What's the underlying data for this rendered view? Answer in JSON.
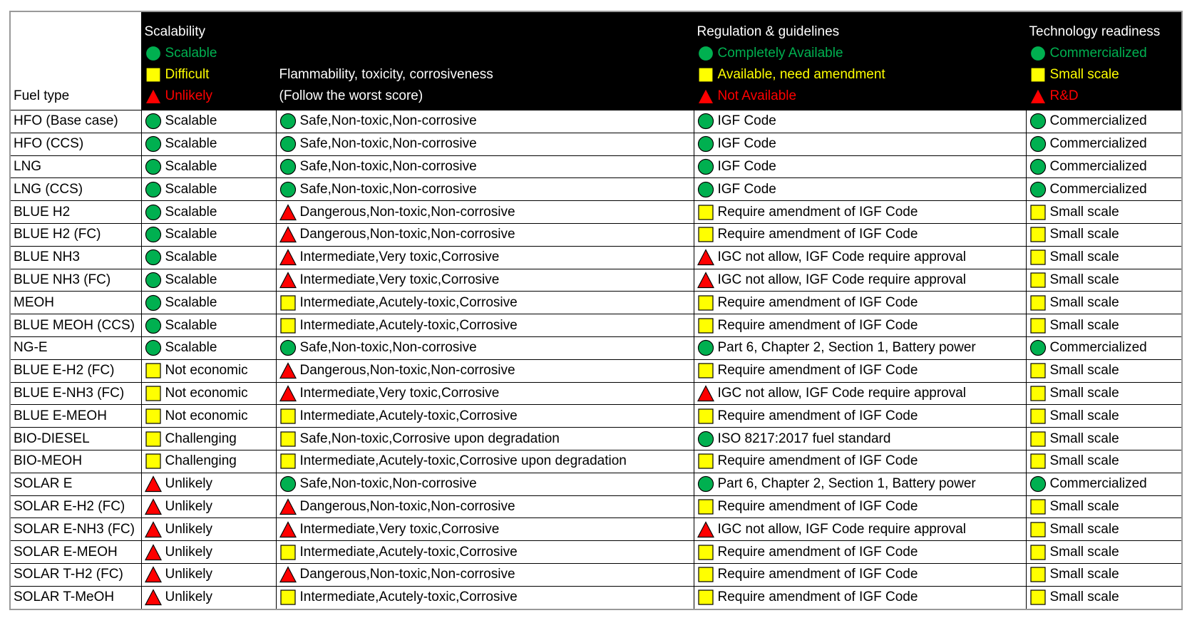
{
  "icon_colors": {
    "circle": "#00b050",
    "square": "#ffff00",
    "triangle": "#ff0000"
  },
  "header": {
    "fuel_type": "Fuel type",
    "columns": [
      {
        "title": "Scalability",
        "legend": [
          {
            "icon": "circle",
            "label": "Scalable"
          },
          {
            "icon": "square",
            "label": "Difficult"
          },
          {
            "icon": "triangle",
            "label": "Unlikely"
          }
        ]
      },
      {
        "title": "Flammability, toxicity, corrosiveness",
        "subtitle": "(Follow the worst score)"
      },
      {
        "title": "Regulation & guidelines",
        "legend": [
          {
            "icon": "circle",
            "label": "Completely Available"
          },
          {
            "icon": "square",
            "label": "Available, need amendment"
          },
          {
            "icon": "triangle",
            "label": "Not Available"
          }
        ]
      },
      {
        "title": "Technology readiness",
        "legend": [
          {
            "icon": "circle",
            "label": "Commercialized"
          },
          {
            "icon": "square",
            "label": "Small scale"
          },
          {
            "icon": "triangle",
            "label": "R&D"
          }
        ]
      }
    ]
  },
  "rows": [
    {
      "fuel": "HFO (Base case)",
      "cells": [
        {
          "icon": "circle",
          "text": "Scalable"
        },
        {
          "icon": "circle",
          "text": "Safe,Non-toxic,Non-corrosive"
        },
        {
          "icon": "circle",
          "text": "IGF Code"
        },
        {
          "icon": "circle",
          "text": "Commercialized"
        }
      ]
    },
    {
      "fuel": "HFO (CCS)",
      "cells": [
        {
          "icon": "circle",
          "text": "Scalable"
        },
        {
          "icon": "circle",
          "text": "Safe,Non-toxic,Non-corrosive"
        },
        {
          "icon": "circle",
          "text": "IGF Code"
        },
        {
          "icon": "circle",
          "text": "Commercialized"
        }
      ]
    },
    {
      "fuel": "LNG",
      "cells": [
        {
          "icon": "circle",
          "text": "Scalable"
        },
        {
          "icon": "circle",
          "text": "Safe,Non-toxic,Non-corrosive"
        },
        {
          "icon": "circle",
          "text": "IGF Code"
        },
        {
          "icon": "circle",
          "text": "Commercialized"
        }
      ]
    },
    {
      "fuel": "LNG (CCS)",
      "cells": [
        {
          "icon": "circle",
          "text": "Scalable"
        },
        {
          "icon": "circle",
          "text": "Safe,Non-toxic,Non-corrosive"
        },
        {
          "icon": "circle",
          "text": "IGF Code"
        },
        {
          "icon": "circle",
          "text": "Commercialized"
        }
      ]
    },
    {
      "fuel": "BLUE H2",
      "cells": [
        {
          "icon": "circle",
          "text": "Scalable"
        },
        {
          "icon": "triangle",
          "text": "Dangerous,Non-toxic,Non-corrosive"
        },
        {
          "icon": "square",
          "text": "Require amendment of IGF Code"
        },
        {
          "icon": "square",
          "text": "Small scale"
        }
      ]
    },
    {
      "fuel": "BLUE H2 (FC)",
      "cells": [
        {
          "icon": "circle",
          "text": "Scalable"
        },
        {
          "icon": "triangle",
          "text": "Dangerous,Non-toxic,Non-corrosive"
        },
        {
          "icon": "square",
          "text": "Require amendment of IGF Code"
        },
        {
          "icon": "square",
          "text": "Small scale"
        }
      ]
    },
    {
      "fuel": "BLUE NH3",
      "cells": [
        {
          "icon": "circle",
          "text": "Scalable"
        },
        {
          "icon": "triangle",
          "text": "Intermediate,Very toxic,Corrosive"
        },
        {
          "icon": "triangle",
          "text": "IGC not allow, IGF Code require approval"
        },
        {
          "icon": "square",
          "text": "Small scale"
        }
      ]
    },
    {
      "fuel": "BLUE NH3 (FC)",
      "cells": [
        {
          "icon": "circle",
          "text": "Scalable"
        },
        {
          "icon": "triangle",
          "text": "Intermediate,Very toxic,Corrosive"
        },
        {
          "icon": "triangle",
          "text": "IGC not allow, IGF Code require approval"
        },
        {
          "icon": "square",
          "text": "Small scale"
        }
      ]
    },
    {
      "fuel": "MEOH",
      "cells": [
        {
          "icon": "circle",
          "text": "Scalable"
        },
        {
          "icon": "square",
          "text": "Intermediate,Acutely-toxic,Corrosive"
        },
        {
          "icon": "square",
          "text": "Require amendment of IGF Code"
        },
        {
          "icon": "square",
          "text": "Small scale"
        }
      ]
    },
    {
      "fuel": "BLUE MEOH (CCS)",
      "cells": [
        {
          "icon": "circle",
          "text": "Scalable"
        },
        {
          "icon": "square",
          "text": "Intermediate,Acutely-toxic,Corrosive"
        },
        {
          "icon": "square",
          "text": "Require amendment of IGF Code"
        },
        {
          "icon": "square",
          "text": "Small scale"
        }
      ]
    },
    {
      "fuel": "NG-E",
      "cells": [
        {
          "icon": "circle",
          "text": "Scalable"
        },
        {
          "icon": "circle",
          "text": "Safe,Non-toxic,Non-corrosive"
        },
        {
          "icon": "circle",
          "text": "Part 6, Chapter 2, Section 1, Battery power"
        },
        {
          "icon": "circle",
          "text": "Commercialized"
        }
      ]
    },
    {
      "fuel": "BLUE E-H2 (FC)",
      "cells": [
        {
          "icon": "square",
          "text": "Not economic"
        },
        {
          "icon": "triangle",
          "text": "Dangerous,Non-toxic,Non-corrosive"
        },
        {
          "icon": "square",
          "text": "Require amendment of IGF Code"
        },
        {
          "icon": "square",
          "text": "Small scale"
        }
      ]
    },
    {
      "fuel": "BLUE E-NH3 (FC)",
      "cells": [
        {
          "icon": "square",
          "text": "Not economic"
        },
        {
          "icon": "triangle",
          "text": "Intermediate,Very toxic,Corrosive"
        },
        {
          "icon": "triangle",
          "text": "IGC not allow, IGF Code require approval"
        },
        {
          "icon": "square",
          "text": "Small scale"
        }
      ]
    },
    {
      "fuel": "BLUE E-MEOH",
      "cells": [
        {
          "icon": "square",
          "text": "Not economic"
        },
        {
          "icon": "square",
          "text": "Intermediate,Acutely-toxic,Corrosive"
        },
        {
          "icon": "square",
          "text": "Require amendment of IGF Code"
        },
        {
          "icon": "square",
          "text": "Small scale"
        }
      ]
    },
    {
      "fuel": "BIO-DIESEL",
      "cells": [
        {
          "icon": "square",
          "text": "Challenging"
        },
        {
          "icon": "square",
          "text": "Safe,Non-toxic,Corrosive upon degradation"
        },
        {
          "icon": "circle",
          "text": "ISO 8217:2017 fuel standard"
        },
        {
          "icon": "square",
          "text": "Small scale"
        }
      ]
    },
    {
      "fuel": "BIO-MEOH",
      "cells": [
        {
          "icon": "square",
          "text": "Challenging"
        },
        {
          "icon": "square",
          "text": "Intermediate,Acutely-toxic,Corrosive upon degradation"
        },
        {
          "icon": "square",
          "text": "Require amendment of IGF Code"
        },
        {
          "icon": "square",
          "text": "Small scale"
        }
      ]
    },
    {
      "fuel": "SOLAR E",
      "cells": [
        {
          "icon": "triangle",
          "text": "Unlikely"
        },
        {
          "icon": "circle",
          "text": "Safe,Non-toxic,Non-corrosive"
        },
        {
          "icon": "circle",
          "text": "Part 6, Chapter 2, Section 1, Battery power"
        },
        {
          "icon": "circle",
          "text": "Commercialized"
        }
      ]
    },
    {
      "fuel": "SOLAR E-H2 (FC)",
      "cells": [
        {
          "icon": "triangle",
          "text": "Unlikely"
        },
        {
          "icon": "triangle",
          "text": "Dangerous,Non-toxic,Non-corrosive"
        },
        {
          "icon": "square",
          "text": "Require amendment of IGF Code"
        },
        {
          "icon": "square",
          "text": "Small scale"
        }
      ]
    },
    {
      "fuel": "SOLAR E-NH3 (FC)",
      "cells": [
        {
          "icon": "triangle",
          "text": "Unlikely"
        },
        {
          "icon": "triangle",
          "text": "Intermediate,Very toxic,Corrosive"
        },
        {
          "icon": "triangle",
          "text": "IGC not allow, IGF Code require approval"
        },
        {
          "icon": "square",
          "text": "Small scale"
        }
      ]
    },
    {
      "fuel": "SOLAR E-MEOH",
      "cells": [
        {
          "icon": "triangle",
          "text": "Unlikely"
        },
        {
          "icon": "square",
          "text": "Intermediate,Acutely-toxic,Corrosive"
        },
        {
          "icon": "square",
          "text": "Require amendment of IGF Code"
        },
        {
          "icon": "square",
          "text": "Small scale"
        }
      ]
    },
    {
      "fuel": "SOLAR T-H2 (FC)",
      "cells": [
        {
          "icon": "triangle",
          "text": "Unlikely"
        },
        {
          "icon": "triangle",
          "text": "Dangerous,Non-toxic,Non-corrosive"
        },
        {
          "icon": "square",
          "text": "Require amendment of IGF Code"
        },
        {
          "icon": "square",
          "text": "Small scale"
        }
      ]
    },
    {
      "fuel": "SOLAR T-MeOH",
      "cells": [
        {
          "icon": "triangle",
          "text": "Unlikely"
        },
        {
          "icon": "square",
          "text": "Intermediate,Acutely-toxic,Corrosive"
        },
        {
          "icon": "square",
          "text": "Require amendment of IGF Code"
        },
        {
          "icon": "square",
          "text": "Small scale"
        }
      ]
    }
  ]
}
